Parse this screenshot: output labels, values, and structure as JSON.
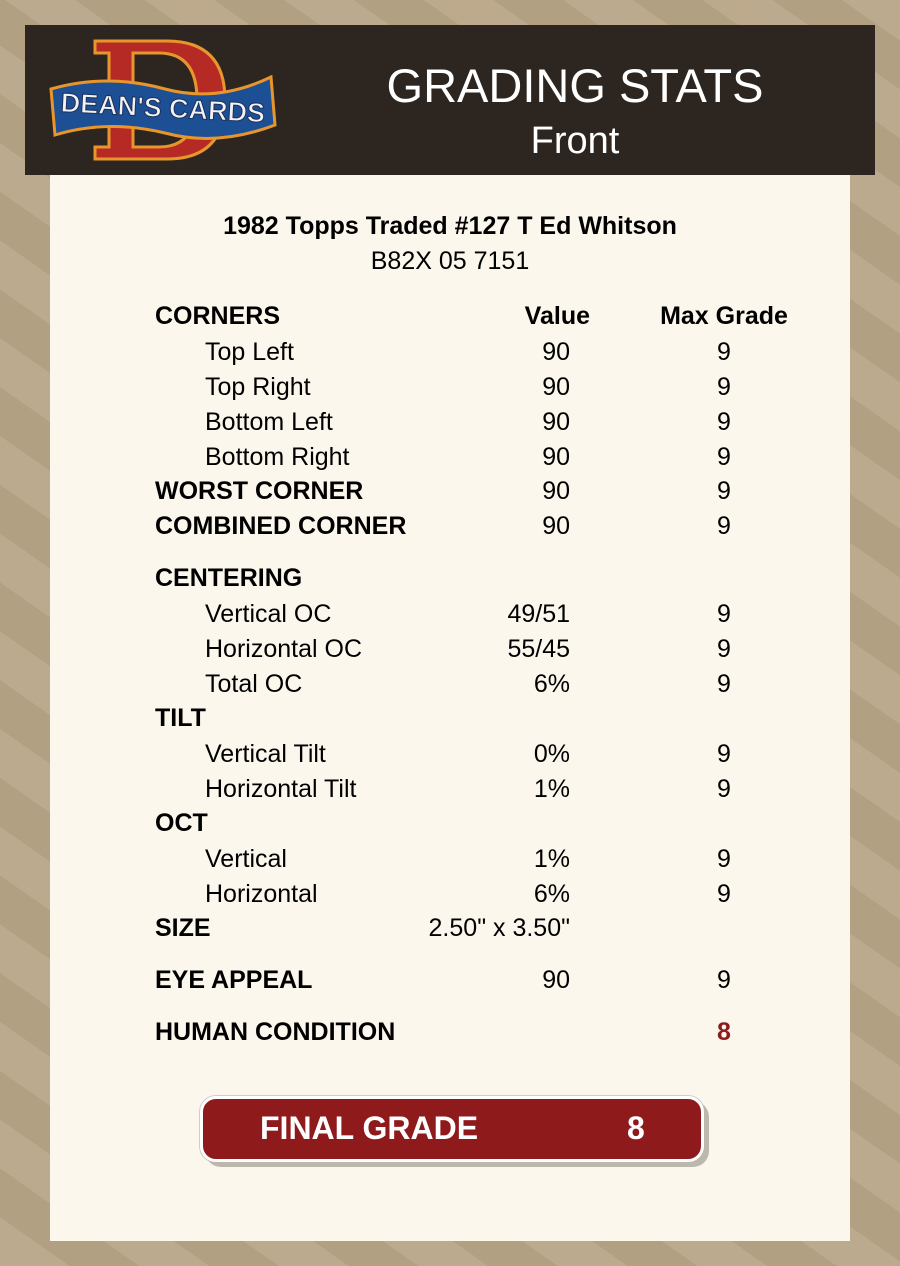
{
  "header": {
    "logo_text": "DEAN'S CARDS",
    "title": "GRADING STATS",
    "subtitle": "Front"
  },
  "card": {
    "title": "1982 Topps Traded #127 T Ed Whitson",
    "cert": "B82X 05 7151"
  },
  "columns": {
    "value": "Value",
    "max": "Max Grade"
  },
  "rows": [
    {
      "label": "CORNERS",
      "style": "header"
    },
    {
      "label": "Top Left",
      "style": "sub",
      "value": "90",
      "max": "9"
    },
    {
      "label": "Top Right",
      "style": "sub",
      "value": "90",
      "max": "9"
    },
    {
      "label": "Bottom Left",
      "style": "sub",
      "value": "90",
      "max": "9"
    },
    {
      "label": "Bottom Right",
      "style": "sub",
      "value": "90",
      "max": "9"
    },
    {
      "label": "WORST CORNER",
      "style": "bold",
      "value": "90",
      "max": "9"
    },
    {
      "label": "COMBINED CORNER",
      "style": "bold",
      "value": "90",
      "max": "9"
    },
    {
      "label": "CENTERING",
      "style": "bold"
    },
    {
      "label": "Vertical OC",
      "style": "sub",
      "value": "49/51",
      "max": "9"
    },
    {
      "label": "Horizontal OC",
      "style": "sub",
      "value": "55/45",
      "max": "9"
    },
    {
      "label": "Total OC",
      "style": "sub",
      "value": "6%",
      "max": "9"
    },
    {
      "label": "TILT",
      "style": "bold"
    },
    {
      "label": "Vertical Tilt",
      "style": "sub",
      "value": "0%",
      "max": "9"
    },
    {
      "label": "Horizontal Tilt",
      "style": "sub",
      "value": "1%",
      "max": "9"
    },
    {
      "label": "OCT",
      "style": "bold"
    },
    {
      "label": "Vertical",
      "style": "sub",
      "value": "1%",
      "max": "9"
    },
    {
      "label": "Horizontal",
      "style": "sub",
      "value": "6%",
      "max": "9"
    },
    {
      "label": "SIZE",
      "style": "bold",
      "value": "2.50\" x 3.50\""
    },
    {
      "label": "EYE APPEAL",
      "style": "bold",
      "value": "90",
      "max": "9"
    },
    {
      "label": "HUMAN CONDITION",
      "style": "bold",
      "max": "8",
      "max_color": "#8e1a1b"
    }
  ],
  "final": {
    "label": "FINAL GRADE",
    "value": "8",
    "color": "#8f1a1c"
  }
}
